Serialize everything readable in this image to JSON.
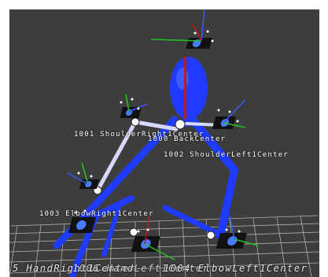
{
  "viewport": {
    "background": "#3d3d3d",
    "grid_color": "#bdbdbd",
    "bone_blue": "#1f3bff",
    "bone_white": "#d8d8ff"
  },
  "labels": {
    "shoulder_right": "1001 ShoulderRight1Center",
    "back": "1000 BackCenter",
    "shoulder_left": "1002 ShoulderLeft1Center",
    "elbow_right": "1003 ElbowRight1Center",
    "bottom_overlap_1": "5 HandRight1Center",
    "bottom_overlap_2": "1006 HandLeft1Center",
    "bottom_overlap_3": "1004 ElbowLeft1Center"
  }
}
